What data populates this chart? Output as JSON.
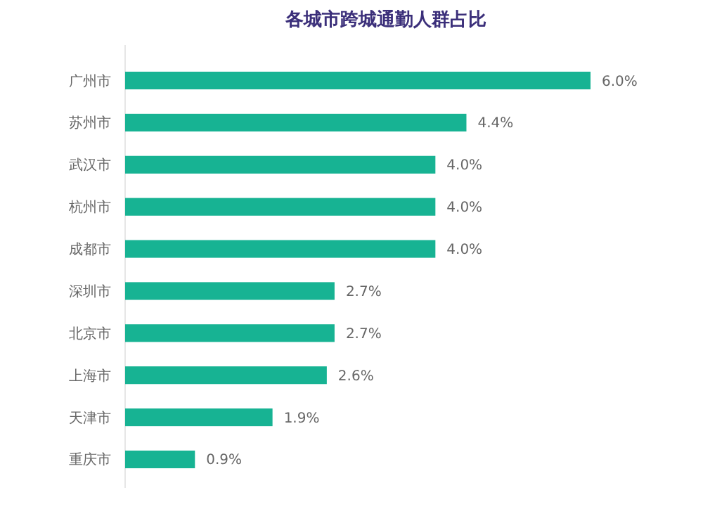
{
  "chart_data": {
    "type": "bar",
    "orientation": "horizontal",
    "title": "各城市跨城通勤人群占比",
    "categories": [
      "广州市",
      "苏州市",
      "武汉市",
      "杭州市",
      "成都市",
      "深圳市",
      "北京市",
      "上海市",
      "天津市",
      "重庆市"
    ],
    "values": [
      6.0,
      4.4,
      4.0,
      4.0,
      4.0,
      2.7,
      2.7,
      2.6,
      1.9,
      0.9
    ],
    "value_labels": [
      "6.0%",
      "4.4%",
      "4.0%",
      "4.0%",
      "4.0%",
      "2.7%",
      "2.7%",
      "2.6%",
      "1.9%",
      "0.9%"
    ],
    "color": "#17b393"
  }
}
